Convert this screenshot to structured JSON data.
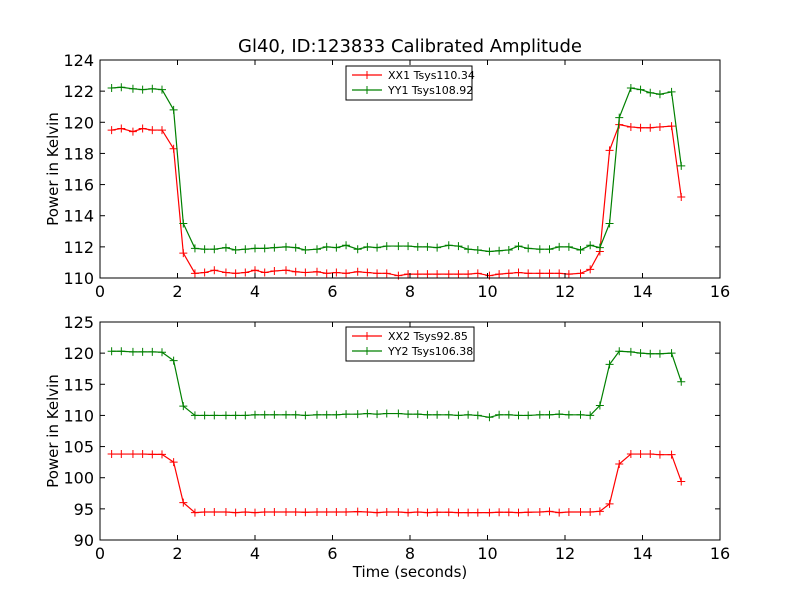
{
  "figure": {
    "title": "Gl40, ID:123833 Calibrated Amplitude"
  },
  "chart_data": [
    {
      "type": "line",
      "title": "Gl40, ID:123833 Calibrated Amplitude",
      "xlabel": "",
      "ylabel": "Power in Kelvin",
      "xlim": [
        0,
        16
      ],
      "ylim": [
        110,
        124
      ],
      "xticks": [
        "0",
        "2",
        "4",
        "6",
        "8",
        "10",
        "12",
        "14",
        "16"
      ],
      "yticks": [
        "110",
        "112",
        "114",
        "116",
        "118",
        "120",
        "122",
        "124"
      ],
      "grid": false,
      "legend_position": "top-center",
      "x": [
        0.3,
        0.55,
        0.85,
        1.1,
        1.35,
        1.6,
        1.9,
        2.15,
        2.45,
        2.7,
        2.95,
        3.25,
        3.5,
        3.75,
        4.0,
        4.25,
        4.5,
        4.8,
        5.05,
        5.3,
        5.6,
        5.85,
        6.1,
        6.35,
        6.65,
        6.9,
        7.15,
        7.4,
        7.7,
        7.95,
        8.2,
        8.45,
        8.7,
        9.0,
        9.25,
        9.5,
        9.75,
        10.05,
        10.3,
        10.55,
        10.8,
        11.05,
        11.35,
        11.6,
        11.85,
        12.1,
        12.4,
        12.65,
        12.9,
        13.15,
        13.4,
        13.7,
        13.95,
        14.2,
        14.45,
        14.75,
        15.0
      ],
      "series": [
        {
          "name": "XX1 Tsys110.34",
          "color": "#ff0000",
          "values": [
            119.5,
            119.6,
            119.4,
            119.6,
            119.5,
            119.5,
            118.3,
            111.6,
            110.3,
            110.35,
            110.5,
            110.35,
            110.3,
            110.35,
            110.5,
            110.35,
            110.45,
            110.5,
            110.4,
            110.35,
            110.4,
            110.3,
            110.35,
            110.3,
            110.4,
            110.35,
            110.3,
            110.3,
            110.15,
            110.25,
            110.25,
            110.25,
            110.25,
            110.25,
            110.25,
            110.25,
            110.3,
            110.15,
            110.25,
            110.3,
            110.35,
            110.3,
            110.3,
            110.3,
            110.3,
            110.25,
            110.3,
            110.55,
            111.7,
            118.2,
            119.85,
            119.7,
            119.65,
            119.65,
            119.7,
            119.75,
            115.2
          ]
        },
        {
          "name": "YY1 Tsys108.92",
          "color": "#008000",
          "values": [
            122.2,
            122.25,
            122.15,
            122.1,
            122.15,
            122.1,
            120.8,
            113.5,
            111.9,
            111.85,
            111.85,
            111.95,
            111.8,
            111.85,
            111.9,
            111.9,
            111.95,
            112.0,
            111.95,
            111.8,
            111.85,
            112.0,
            111.95,
            112.1,
            111.85,
            112.0,
            111.95,
            112.05,
            112.05,
            112.05,
            112.0,
            112.0,
            111.95,
            112.1,
            112.05,
            111.85,
            111.8,
            111.7,
            111.75,
            111.8,
            112.05,
            111.9,
            111.85,
            111.85,
            112.0,
            112.0,
            111.8,
            112.1,
            111.95,
            113.5,
            120.3,
            122.2,
            122.1,
            121.9,
            121.8,
            121.95,
            117.2
          ]
        }
      ]
    },
    {
      "type": "line",
      "title": "",
      "xlabel": "Time (seconds)",
      "ylabel": "Power in Kelvin",
      "xlim": [
        0,
        16
      ],
      "ylim": [
        90,
        125
      ],
      "xticks": [
        "0",
        "2",
        "4",
        "6",
        "8",
        "10",
        "12",
        "14",
        "16"
      ],
      "yticks": [
        "90",
        "95",
        "100",
        "105",
        "110",
        "115",
        "120",
        "125"
      ],
      "grid": false,
      "legend_position": "top-center",
      "x": [
        0.3,
        0.55,
        0.85,
        1.1,
        1.35,
        1.6,
        1.9,
        2.15,
        2.45,
        2.7,
        2.95,
        3.25,
        3.5,
        3.75,
        4.0,
        4.25,
        4.5,
        4.8,
        5.05,
        5.3,
        5.6,
        5.85,
        6.1,
        6.35,
        6.65,
        6.9,
        7.15,
        7.4,
        7.7,
        7.95,
        8.2,
        8.45,
        8.7,
        9.0,
        9.25,
        9.5,
        9.75,
        10.05,
        10.3,
        10.55,
        10.8,
        11.05,
        11.35,
        11.6,
        11.85,
        12.1,
        12.4,
        12.65,
        12.9,
        13.15,
        13.4,
        13.7,
        13.95,
        14.2,
        14.45,
        14.75,
        15.0
      ],
      "series": [
        {
          "name": "XX2 Tsys92.85",
          "color": "#ff0000",
          "values": [
            103.8,
            103.8,
            103.8,
            103.8,
            103.75,
            103.75,
            102.5,
            96.0,
            94.4,
            94.5,
            94.5,
            94.5,
            94.4,
            94.5,
            94.4,
            94.5,
            94.5,
            94.5,
            94.5,
            94.45,
            94.5,
            94.5,
            94.5,
            94.5,
            94.55,
            94.5,
            94.4,
            94.5,
            94.5,
            94.4,
            94.5,
            94.4,
            94.45,
            94.45,
            94.4,
            94.4,
            94.4,
            94.4,
            94.45,
            94.45,
            94.4,
            94.45,
            94.5,
            94.6,
            94.4,
            94.5,
            94.5,
            94.5,
            94.6,
            95.8,
            102.2,
            103.8,
            103.8,
            103.8,
            103.7,
            103.7,
            99.4
          ]
        },
        {
          "name": "YY2 Tsys106.38",
          "color": "#008000",
          "values": [
            120.3,
            120.3,
            120.2,
            120.2,
            120.2,
            120.15,
            118.8,
            111.5,
            110.0,
            110.0,
            110.0,
            110.0,
            110.0,
            110.0,
            110.1,
            110.1,
            110.1,
            110.1,
            110.1,
            110.0,
            110.1,
            110.1,
            110.1,
            110.2,
            110.2,
            110.3,
            110.2,
            110.3,
            110.3,
            110.2,
            110.2,
            110.1,
            110.1,
            110.1,
            110.0,
            110.1,
            110.0,
            109.7,
            110.1,
            110.1,
            110.0,
            110.0,
            110.1,
            110.1,
            110.2,
            110.1,
            110.1,
            110.0,
            111.6,
            118.2,
            120.3,
            120.2,
            120.0,
            119.9,
            119.9,
            120.0,
            115.4
          ]
        }
      ]
    }
  ]
}
